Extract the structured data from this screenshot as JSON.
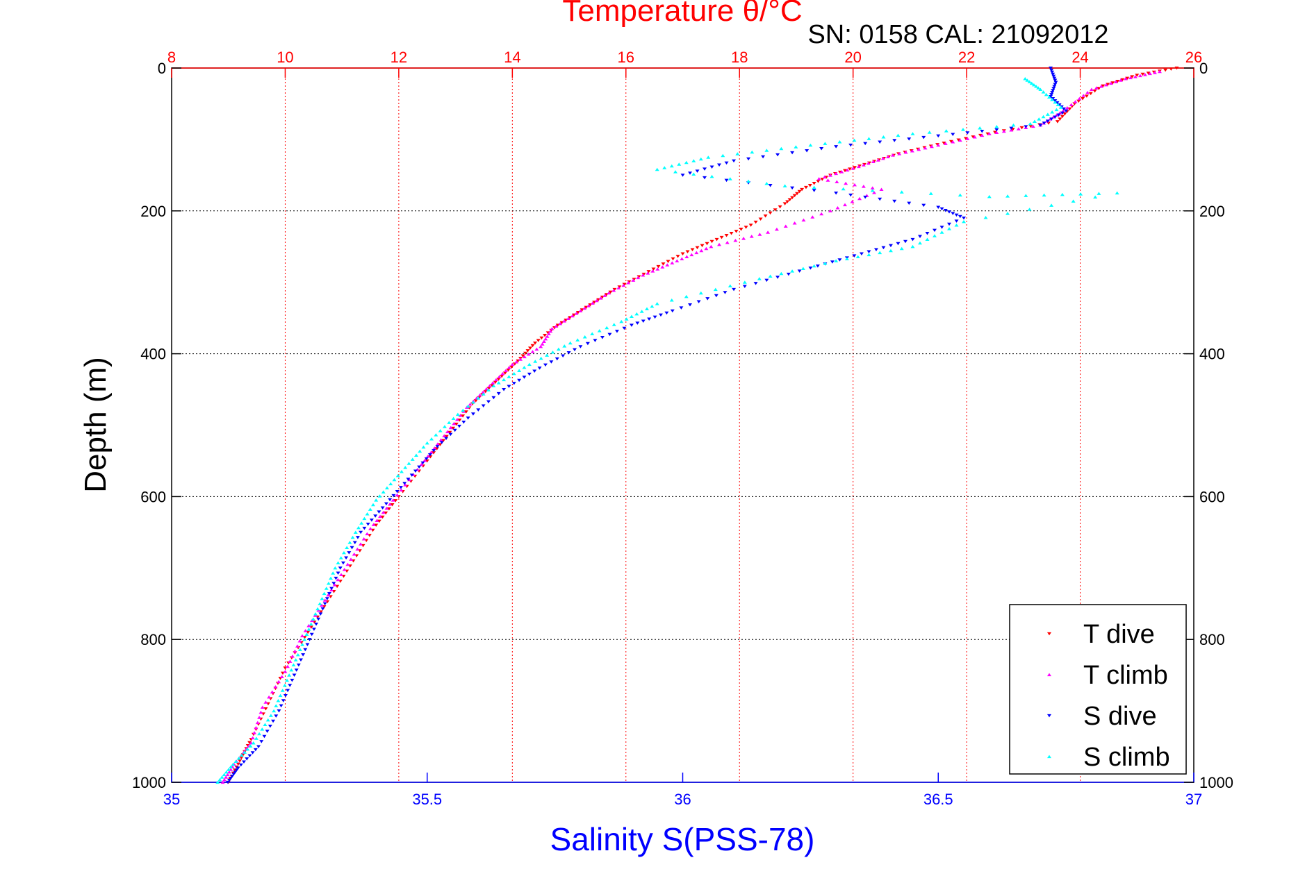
{
  "chart_data": {
    "type": "scatter",
    "title": "Temperature θ/°C",
    "subtitle": "SN: 0158  CAL: 21092012",
    "xlabel": "Salinity S(PSS-78)",
    "ylabel": "Depth (m)",
    "x_bottom": {
      "lim": [
        35,
        37
      ],
      "ticks": [
        "35",
        "35.5",
        "36",
        "36.5",
        "37"
      ],
      "color": "#0000ff"
    },
    "x_top": {
      "lim": [
        8,
        26
      ],
      "ticks": [
        "8",
        "10",
        "12",
        "14",
        "16",
        "18",
        "20",
        "22",
        "24",
        "26"
      ],
      "color": "#ff0000"
    },
    "y": {
      "lim": [
        0,
        1000
      ],
      "reversed": true,
      "ticks": [
        "0",
        "200",
        "400",
        "600",
        "800",
        "1000"
      ]
    },
    "grid": true,
    "legend_position": "bottom-right",
    "series": [
      {
        "name": "T dive",
        "axis": "top",
        "color": "#ff0000",
        "marker": "triangle-down",
        "points": [
          [
            25.7,
            0
          ],
          [
            25.0,
            10
          ],
          [
            24.4,
            25
          ],
          [
            23.9,
            50
          ],
          [
            23.6,
            75
          ],
          [
            22.5,
            90
          ],
          [
            21.6,
            105
          ],
          [
            20.8,
            120
          ],
          [
            20.2,
            135
          ],
          [
            19.6,
            150
          ],
          [
            19.1,
            170
          ],
          [
            18.8,
            190
          ],
          [
            18.2,
            220
          ],
          [
            17.6,
            240
          ],
          [
            17.0,
            260
          ],
          [
            16.4,
            285
          ],
          [
            15.8,
            310
          ],
          [
            15.3,
            335
          ],
          [
            14.8,
            360
          ],
          [
            14.4,
            385
          ],
          [
            14.1,
            410
          ],
          [
            13.7,
            440
          ],
          [
            13.3,
            470
          ],
          [
            12.9,
            510
          ],
          [
            12.5,
            550
          ],
          [
            12.0,
            600
          ],
          [
            11.6,
            640
          ],
          [
            11.2,
            690
          ],
          [
            10.8,
            740
          ],
          [
            10.4,
            790
          ],
          [
            10.0,
            840
          ],
          [
            9.7,
            890
          ],
          [
            9.4,
            940
          ],
          [
            9.2,
            970
          ],
          [
            9.0,
            1000
          ]
        ]
      },
      {
        "name": "T climb",
        "axis": "top",
        "color": "#ff00ff",
        "marker": "triangle-up",
        "points": [
          [
            25.4,
            5
          ],
          [
            24.8,
            15
          ],
          [
            24.2,
            30
          ],
          [
            23.7,
            60
          ],
          [
            23.3,
            80
          ],
          [
            22.4,
            92
          ],
          [
            21.5,
            108
          ],
          [
            20.7,
            122
          ],
          [
            20.1,
            138
          ],
          [
            19.4,
            155
          ],
          [
            20.5,
            170
          ],
          [
            19.6,
            200
          ],
          [
            18.5,
            230
          ],
          [
            17.5,
            250
          ],
          [
            16.9,
            270
          ],
          [
            16.3,
            290
          ],
          [
            15.7,
            315
          ],
          [
            15.2,
            340
          ],
          [
            14.7,
            365
          ],
          [
            14.5,
            390
          ],
          [
            14.0,
            415
          ],
          [
            13.6,
            445
          ],
          [
            13.2,
            475
          ],
          [
            12.8,
            515
          ],
          [
            12.4,
            555
          ],
          [
            11.9,
            605
          ],
          [
            11.5,
            645
          ],
          [
            11.1,
            695
          ],
          [
            10.7,
            745
          ],
          [
            10.3,
            795
          ],
          [
            10.0,
            845
          ],
          [
            9.6,
            895
          ],
          [
            9.4,
            945
          ],
          [
            9.1,
            975
          ],
          [
            8.9,
            1000
          ]
        ]
      },
      {
        "name": "S dive",
        "axis": "bottom",
        "color": "#0000ff",
        "marker": "triangle-down",
        "points": [
          [
            36.72,
            0
          ],
          [
            36.73,
            20
          ],
          [
            36.72,
            40
          ],
          [
            36.75,
            60
          ],
          [
            36.7,
            80
          ],
          [
            36.5,
            95
          ],
          [
            36.3,
            110
          ],
          [
            36.1,
            130
          ],
          [
            36.0,
            150
          ],
          [
            36.3,
            175
          ],
          [
            36.5,
            195
          ],
          [
            36.55,
            210
          ],
          [
            36.45,
            240
          ],
          [
            36.35,
            260
          ],
          [
            36.25,
            280
          ],
          [
            36.1,
            310
          ],
          [
            35.98,
            340
          ],
          [
            35.9,
            360
          ],
          [
            35.8,
            390
          ],
          [
            35.72,
            420
          ],
          [
            35.65,
            450
          ],
          [
            35.58,
            490
          ],
          [
            35.52,
            530
          ],
          [
            35.47,
            570
          ],
          [
            35.42,
            610
          ],
          [
            35.37,
            650
          ],
          [
            35.33,
            700
          ],
          [
            35.3,
            750
          ],
          [
            35.27,
            800
          ],
          [
            35.24,
            850
          ],
          [
            35.21,
            900
          ],
          [
            35.17,
            950
          ],
          [
            35.13,
            980
          ],
          [
            35.11,
            1000
          ]
        ]
      },
      {
        "name": "S climb",
        "axis": "bottom",
        "color": "#00ffff",
        "marker": "triangle-up",
        "points": [
          [
            36.67,
            15
          ],
          [
            36.7,
            30
          ],
          [
            36.74,
            55
          ],
          [
            36.68,
            78
          ],
          [
            36.45,
            92
          ],
          [
            36.25,
            108
          ],
          [
            36.05,
            125
          ],
          [
            35.95,
            142
          ],
          [
            36.2,
            165
          ],
          [
            36.6,
            180
          ],
          [
            36.85,
            175
          ],
          [
            36.55,
            215
          ],
          [
            36.45,
            250
          ],
          [
            36.3,
            270
          ],
          [
            36.15,
            295
          ],
          [
            35.95,
            330
          ],
          [
            35.88,
            355
          ],
          [
            35.78,
            385
          ],
          [
            35.7,
            415
          ],
          [
            35.63,
            445
          ],
          [
            35.56,
            485
          ],
          [
            35.5,
            525
          ],
          [
            35.45,
            565
          ],
          [
            35.4,
            605
          ],
          [
            35.36,
            650
          ],
          [
            35.32,
            700
          ],
          [
            35.29,
            750
          ],
          [
            35.26,
            800
          ],
          [
            35.23,
            850
          ],
          [
            35.2,
            900
          ],
          [
            35.16,
            945
          ],
          [
            35.12,
            975
          ],
          [
            35.09,
            1000
          ]
        ]
      }
    ]
  }
}
